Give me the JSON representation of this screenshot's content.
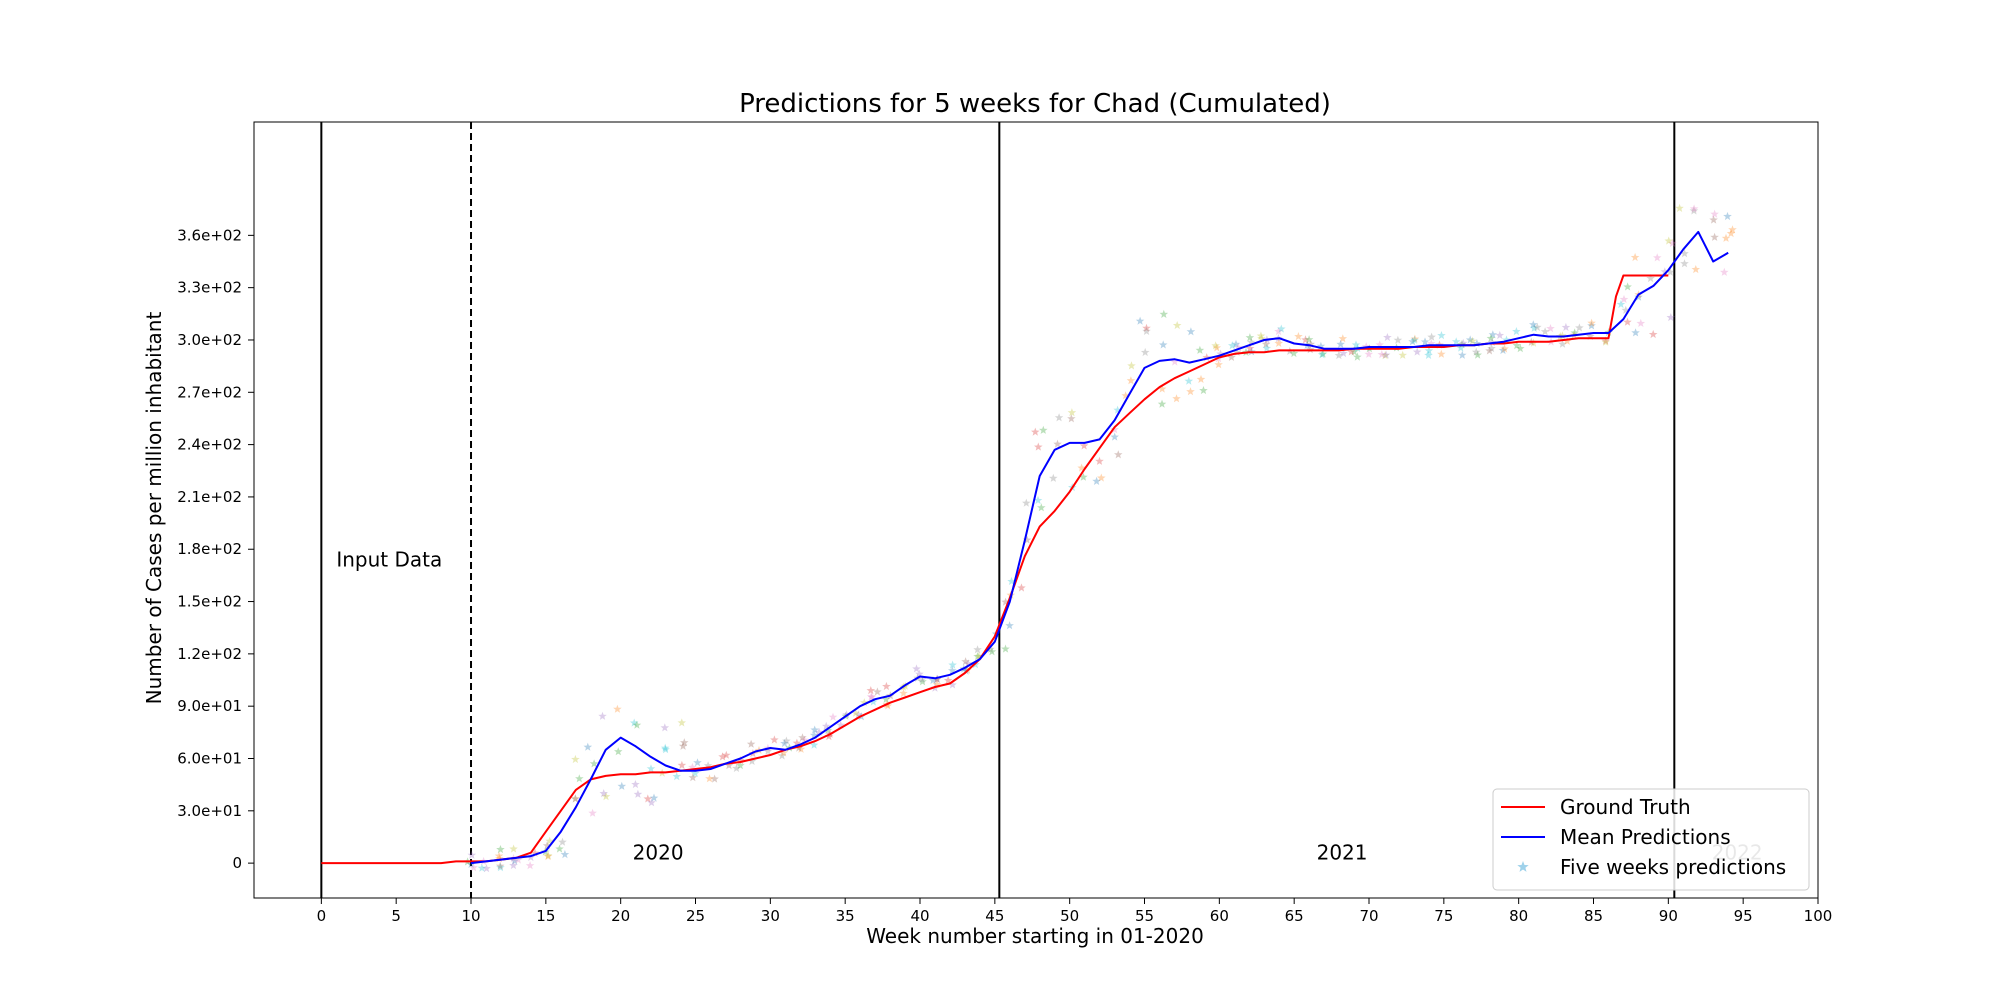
{
  "chart_data": {
    "type": "line",
    "title": "Predictions for 5 weeks for Chad (Cumulated)",
    "xlabel": "Week number starting in 01-2020",
    "ylabel": "Number of Cases per million inhabitant",
    "xlim": [
      -4.5,
      100
    ],
    "ylim": [
      -20,
      425
    ],
    "xticks": [
      0,
      5,
      10,
      15,
      20,
      25,
      30,
      35,
      40,
      45,
      50,
      55,
      60,
      65,
      70,
      75,
      80,
      85,
      90,
      95,
      100
    ],
    "yticks": [
      {
        "value": 0,
        "label": "0"
      },
      {
        "value": 30,
        "label": "3.0e+01"
      },
      {
        "value": 60,
        "label": "6.0e+01"
      },
      {
        "value": 90,
        "label": "9.0e+01"
      },
      {
        "value": 120,
        "label": "1.2e+02"
      },
      {
        "value": 150,
        "label": "1.5e+02"
      },
      {
        "value": 180,
        "label": "1.8e+02"
      },
      {
        "value": 210,
        "label": "2.1e+02"
      },
      {
        "value": 240,
        "label": "2.4e+02"
      },
      {
        "value": 270,
        "label": "2.7e+02"
      },
      {
        "value": 300,
        "label": "3.0e+02"
      },
      {
        "value": 330,
        "label": "3.3e+02"
      },
      {
        "value": 360,
        "label": "3.6e+02"
      }
    ],
    "grid": false,
    "legend_position": "bottom-right",
    "vlines": [
      {
        "x": 0,
        "style": "solid"
      },
      {
        "x": 10,
        "style": "dashed"
      },
      {
        "x": 45.3,
        "style": "solid"
      },
      {
        "x": 90.4,
        "style": "solid"
      }
    ],
    "annotations": [
      {
        "text": "Input Data",
        "x": 1,
        "y": 170
      },
      {
        "text": "2020",
        "x": 20.8,
        "y": 2
      },
      {
        "text": "2021",
        "x": 66.5,
        "y": 2
      },
      {
        "text": "2022",
        "x": 92.9,
        "y": 2,
        "faded": true
      }
    ],
    "series": [
      {
        "name": "Ground Truth",
        "color": "#ff0000",
        "x": [
          0,
          1,
          2,
          3,
          4,
          5,
          6,
          7,
          8,
          9,
          10,
          11,
          12,
          13,
          14,
          15,
          16,
          17,
          18,
          19,
          20,
          21,
          22,
          23,
          24,
          25,
          26,
          27,
          28,
          29,
          30,
          31,
          32,
          33,
          34,
          35,
          36,
          37,
          38,
          39,
          40,
          41,
          42,
          43,
          44,
          45,
          46,
          47,
          48,
          49,
          50,
          51,
          52,
          53,
          54,
          55,
          56,
          57,
          58,
          59,
          60,
          61,
          62,
          63,
          64,
          65,
          66,
          67,
          68,
          69,
          70,
          71,
          72,
          73,
          74,
          75,
          76,
          77,
          78,
          79,
          80,
          81,
          82,
          83,
          84,
          85,
          86,
          86.5,
          87,
          88,
          89,
          90
        ],
        "y": [
          0,
          0,
          0,
          0,
          0,
          0,
          0,
          0,
          0,
          1,
          1,
          1,
          2,
          3,
          6,
          18,
          30,
          42,
          48,
          50,
          51,
          51,
          52,
          52,
          53,
          54,
          55,
          57,
          58,
          60,
          62,
          65,
          67,
          70,
          74,
          79,
          84,
          88,
          92,
          95,
          98,
          101,
          103,
          109,
          117,
          130,
          152,
          176,
          193,
          202,
          213,
          226,
          238,
          250,
          258,
          266,
          273,
          278,
          282,
          286,
          290,
          292,
          293,
          293,
          294,
          294,
          294,
          294,
          294,
          295,
          295,
          295,
          295,
          296,
          296,
          296,
          297,
          297,
          298,
          298,
          299,
          299,
          299,
          300,
          301,
          301,
          301,
          325,
          337,
          337,
          337,
          337
        ]
      },
      {
        "name": "Mean Predictions",
        "color": "#0000ff",
        "x": [
          10,
          11,
          12,
          13,
          14,
          15,
          16,
          17,
          18,
          19,
          20,
          21,
          22,
          23,
          24,
          25,
          26,
          27,
          28,
          29,
          30,
          31,
          32,
          33,
          34,
          35,
          36,
          37,
          38,
          39,
          40,
          41,
          42,
          43,
          44,
          45,
          46,
          47,
          48,
          49,
          50,
          51,
          52,
          53,
          54,
          55,
          56,
          57,
          58,
          59,
          60,
          61,
          62,
          63,
          64,
          65,
          66,
          67,
          68,
          69,
          70,
          71,
          72,
          73,
          74,
          75,
          76,
          77,
          78,
          79,
          80,
          81,
          82,
          83,
          84,
          85,
          86,
          87,
          88,
          89,
          90,
          91,
          92,
          93,
          94
        ],
        "y": [
          0,
          1,
          2,
          3,
          4,
          7,
          18,
          32,
          48,
          65,
          72,
          67,
          61,
          56,
          53,
          53,
          54,
          57,
          60,
          64,
          66,
          65,
          68,
          72,
          78,
          84,
          90,
          94,
          96,
          102,
          107,
          106,
          108,
          112,
          117,
          127,
          150,
          185,
          222,
          237,
          241,
          241,
          243,
          254,
          269,
          284,
          288,
          289,
          287,
          289,
          291,
          294,
          297,
          300,
          301,
          298,
          297,
          295,
          295,
          295,
          296,
          296,
          296,
          296,
          297,
          297,
          297,
          297,
          298,
          299,
          301,
          303,
          302,
          302,
          303,
          304,
          304,
          312,
          326,
          331,
          340,
          352,
          362,
          345,
          350
        ]
      },
      {
        "name": "Five weeks predictions",
        "color": "#87c7e6",
        "marker": "star"
      }
    ]
  }
}
